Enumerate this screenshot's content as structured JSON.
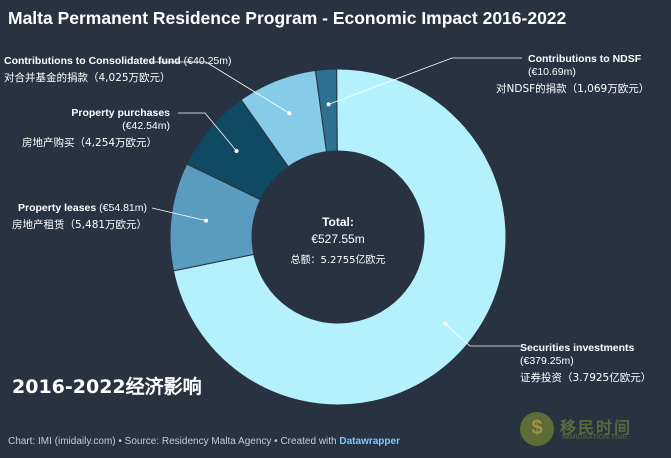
{
  "title": "Malta Permanent Residence Program - Economic Impact 2016-2022",
  "subtitle_cn": "2016-2022经济影响",
  "source": {
    "text": "Chart: IMI (imidaily.com) • Source: Residency Malta Agency • Created with ",
    "tool": "Datawrapper"
  },
  "watermark": {
    "logo_glyph": "$",
    "text": "移民时间",
    "sub": "IMMIGRATION TIME"
  },
  "center": {
    "label": "Total:",
    "value": "€527.55m",
    "cn": "总额：5.2755亿欧元"
  },
  "colors": {
    "background": "#283241",
    "securities": "#b5f1fc",
    "leases": "#5a9cc0",
    "purchases": "#0f4a62",
    "consolidated": "#86cbe8",
    "ndsf": "#2e6f92",
    "leader": "#ffffff"
  },
  "chart_data": {
    "type": "pie",
    "title": "Malta Permanent Residence Program - Economic Impact 2016-2022",
    "donut": true,
    "total": 527.55,
    "unit": "€m",
    "slices": [
      {
        "name": "Contributions to NDSF",
        "value": 10.69,
        "value_label": "(€10.69m)",
        "cn": "对NDSF的捐款（1,069万欧元）",
        "color": "#2e6f92"
      },
      {
        "name": "Securities investments",
        "value": 379.25,
        "value_label": "(€379.25m)",
        "cn": "证券投资（3.7925亿欧元）",
        "color": "#b5f1fc"
      },
      {
        "name": "Property leases",
        "value": 54.81,
        "value_label": "(€54.81m)",
        "cn": "房地产租赁（5,481万欧元）",
        "color": "#5a9cc0"
      },
      {
        "name": "Property purchases",
        "value": 42.54,
        "value_label": "(€42.54m)",
        "cn": "房地产购买（4,254万欧元）",
        "color": "#0f4a62"
      },
      {
        "name": "Contributions to Consolidated fund",
        "value": 40.25,
        "value_label": "(€40.25m)",
        "cn": "对合并基金的捐款（4,025万欧元）",
        "color": "#86cbe8"
      }
    ]
  }
}
